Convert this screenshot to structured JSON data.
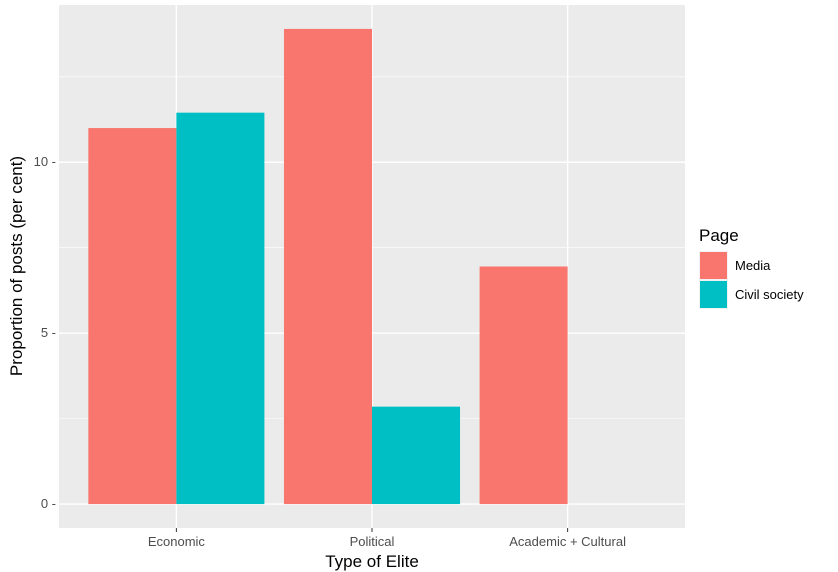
{
  "chart_data": {
    "type": "bar",
    "categories": [
      "Economic",
      "Political",
      "Academic + Cultural"
    ],
    "series": [
      {
        "name": "Media",
        "values": [
          11.0,
          13.9,
          6.95
        ],
        "color": "#F8766D"
      },
      {
        "name": "Civil society",
        "values": [
          11.45,
          2.85,
          0
        ],
        "color": "#00BFC4"
      }
    ],
    "xlabel": "Type of Elite",
    "ylabel": "Proportion of posts (per cent)",
    "ylim": [
      -0.7,
      14.6
    ],
    "yticks": [
      0,
      5,
      10
    ],
    "ytick_labels": [
      "0 -",
      "5 -",
      "10 -"
    ],
    "legend": {
      "title": "Page",
      "position": "right"
    },
    "grid": true,
    "panel_background": "#EBEBEB",
    "grid_color": "#FFFFFF"
  }
}
